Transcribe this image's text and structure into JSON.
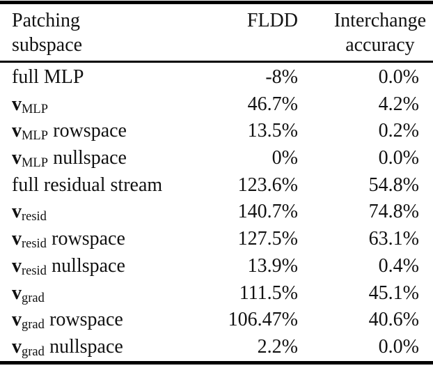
{
  "table": {
    "colors": {
      "text": "#111111",
      "rule": "#000000",
      "background": "#ffffff"
    },
    "header": {
      "col1_line1": "Patching",
      "col1_line2": "subspace",
      "col2": "FLDD",
      "col3_line1": "Interchange",
      "col3_line2": "accuracy"
    },
    "rows": [
      {
        "plain": "full MLP",
        "fldd": "-8%",
        "interchange": "0.0%"
      },
      {
        "vec": "v",
        "sub": "MLP",
        "fldd": "46.7%",
        "interchange": "4.2%"
      },
      {
        "vec": "v",
        "sub": "MLP",
        "rest": "rowspace",
        "fldd": "13.5%",
        "interchange": "0.2%"
      },
      {
        "vec": "v",
        "sub": "MLP",
        "rest": "nullspace",
        "fldd": "0%",
        "interchange": "0.0%"
      },
      {
        "plain": "full residual stream",
        "fldd": "123.6%",
        "interchange": "54.8%"
      },
      {
        "vec": "v",
        "sub": "resid",
        "fldd": "140.7%",
        "interchange": "74.8%"
      },
      {
        "vec": "v",
        "sub": "resid",
        "rest": "rowspace",
        "fldd": "127.5%",
        "interchange": "63.1%"
      },
      {
        "vec": "v",
        "sub": "resid",
        "rest": "nullspace",
        "fldd": "13.9%",
        "interchange": "0.4%"
      },
      {
        "vec": "v",
        "sub": "grad",
        "fldd": "111.5%",
        "interchange": "45.1%"
      },
      {
        "vec": "v",
        "sub": "grad",
        "rest": "rowspace",
        "fldd": "106.47%",
        "interchange": "40.6%"
      },
      {
        "vec": "v",
        "sub": "grad",
        "rest": "nullspace",
        "fldd": "2.2%",
        "interchange": "0.0%"
      }
    ]
  }
}
